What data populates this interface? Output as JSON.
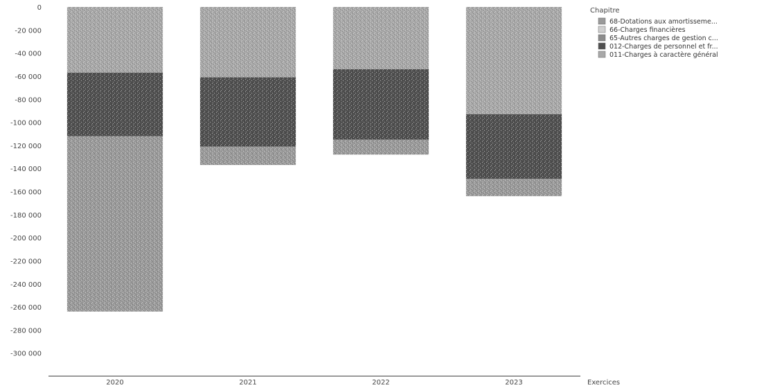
{
  "chart_data": {
    "type": "bar",
    "stacked": true,
    "categories": [
      "2020",
      "2021",
      "2022",
      "2023"
    ],
    "xlabel": "Exercices",
    "ylabel": "",
    "ylim": [
      -320000,
      0
    ],
    "y_ticks": [
      0,
      -20000,
      -40000,
      -60000,
      -80000,
      -100000,
      -120000,
      -140000,
      -160000,
      -180000,
      -200000,
      -220000,
      -240000,
      -260000,
      -280000,
      -300000
    ],
    "y_tick_labels": [
      "0",
      "-20 000",
      "-40 000",
      "-60 000",
      "-80 000",
      "-100 000",
      "-120 000",
      "-140 000",
      "-160 000",
      "-180 000",
      "-200 000",
      "-220 000",
      "-240 000",
      "-260 000",
      "-280 000",
      "-300 000"
    ],
    "grid": false,
    "legend": {
      "title": "Chapitre",
      "placement": "top-right"
    },
    "series": [
      {
        "name": "011-Charges à caractère général",
        "color": "#a8a8a8",
        "values": [
          -57000,
          -61000,
          -54000,
          -93000
        ]
      },
      {
        "name": "012-Charges de personnel et fr...",
        "color": "#505050",
        "values": [
          -55000,
          -60000,
          -61000,
          -56000
        ]
      },
      {
        "name": "65-Autres charges de gestion c...",
        "color": "#8c8c8c",
        "values": [
          0,
          0,
          0,
          0
        ]
      },
      {
        "name": "66-Charges financières",
        "color": "#d0d0d0",
        "values": [
          0,
          0,
          0,
          0
        ]
      },
      {
        "name": "68-Dotations aux amortisseme...",
        "color": "#9a9a9a",
        "values": [
          -152000,
          -16000,
          -13000,
          -15000
        ]
      }
    ],
    "totals": [
      -264000,
      -137000,
      -128000,
      -164000
    ]
  }
}
